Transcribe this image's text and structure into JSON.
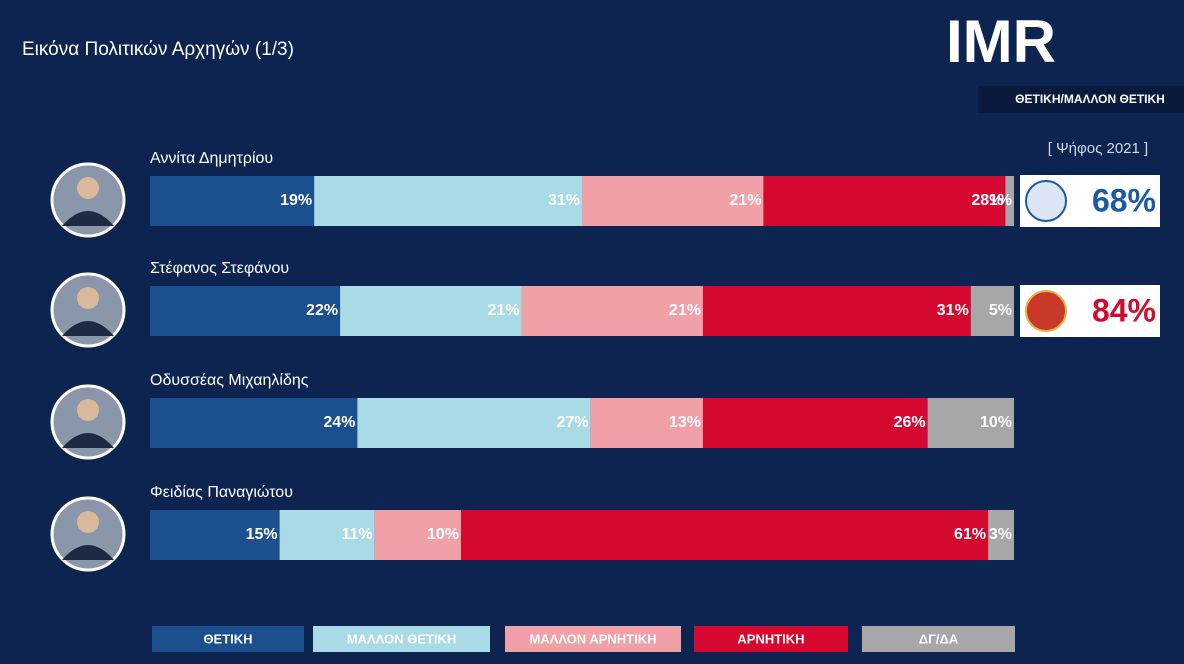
{
  "chart_data": {
    "type": "bar",
    "stacked": true,
    "orientation": "horizontal",
    "title": "Εικόνα Πολιτικών Αρχηγών (1/3)",
    "logo": "IMR",
    "note": "ΘΕΤΙΚΗ/ΜΑΛΛΟΝ ΘΕΤΙΚΗ",
    "xlim": [
      0,
      100
    ],
    "categories": [
      "Αννίτα Δημητρίου",
      "Στέφανος Στεφάνου",
      "Οδυσσέας Μιχαηλίδης",
      "Φειδίας Παναγιώτου"
    ],
    "series": [
      {
        "name": "ΘΕΤΙΚΗ",
        "color": "#1b4f8e",
        "values": [
          19,
          22,
          24,
          15
        ],
        "value_labels": [
          "19%",
          "22%",
          "24%",
          "15%"
        ]
      },
      {
        "name": "ΜΑΛΛΟΝ ΘΕΤΙΚΗ",
        "color": "#a9dbe7",
        "values": [
          31,
          21,
          27,
          11
        ],
        "value_labels": [
          "31%",
          "21%",
          "27%",
          "11%"
        ]
      },
      {
        "name": "ΜΑΛΛΟΝ ΑΡΝΗΤΙΚΗ",
        "color": "#f1a0a8",
        "values": [
          21,
          21,
          13,
          10
        ],
        "value_labels": [
          "21%",
          "21%",
          "13%",
          "10%"
        ]
      },
      {
        "name": "ΑΡΝΗΤΙΚΗ",
        "color": "#d5082f",
        "values": [
          28,
          31,
          26,
          61
        ],
        "value_labels": [
          "28%",
          "31%",
          "26%",
          "61%"
        ]
      },
      {
        "name": "ΔΓ/ΔΑ",
        "color": "#a7a7a7",
        "values": [
          1,
          5,
          10,
          3
        ],
        "value_labels": [
          "1%",
          "5%",
          "10%",
          "3%"
        ]
      }
    ],
    "vote_2021": {
      "label": "[ Ψήφος 2021 ]",
      "values": [
        68,
        84
      ],
      "value_labels": [
        "68%",
        "84%"
      ],
      "colors": [
        "#1b5aa3",
        "#d5082f"
      ]
    }
  }
}
